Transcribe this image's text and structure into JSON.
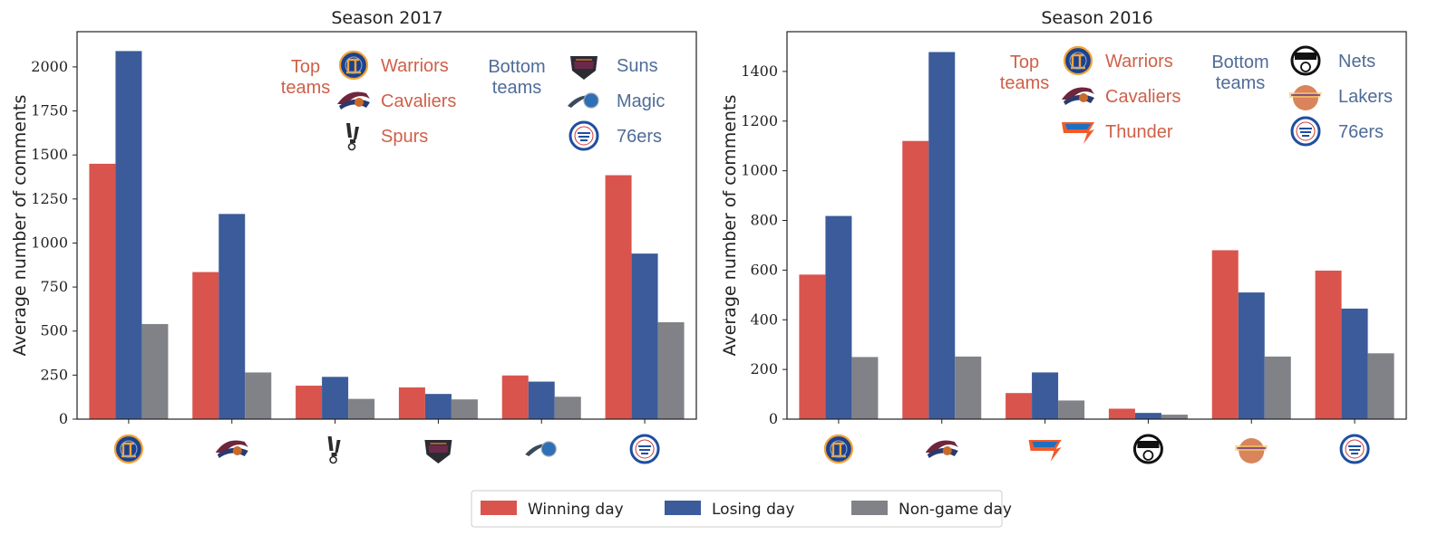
{
  "colors": {
    "winning": "#d9544d",
    "losing": "#3b5b9a",
    "nongame": "#808287",
    "top_text": "#cf6048",
    "bottom_text": "#4f6c97"
  },
  "legend": {
    "placement": "bottom-center",
    "entries": [
      "Winning day",
      "Losing day",
      "Non-game day"
    ]
  },
  "chart_data": [
    {
      "type": "bar",
      "title": "Season 2017",
      "ylabel": "Average number of comments",
      "xlabel": "",
      "ylim": [
        0,
        2200
      ],
      "yticks": [
        0,
        250,
        500,
        750,
        1000,
        1250,
        1500,
        1750,
        2000
      ],
      "grid": false,
      "categories": [
        "Warriors",
        "Cavaliers",
        "Spurs",
        "Suns",
        "Magic",
        "76ers"
      ],
      "category_icons": [
        "warriors-logo-icon",
        "cavaliers-logo-icon",
        "spurs-logo-icon",
        "suns-logo-icon",
        "magic-logo-icon",
        "76ers-logo-icon"
      ],
      "series": [
        {
          "name": "Winning day",
          "values": [
            1450,
            835,
            190,
            180,
            248,
            1385
          ]
        },
        {
          "name": "Losing day",
          "values": [
            2090,
            1165,
            240,
            143,
            213,
            940
          ]
        },
        {
          "name": "Non-game day",
          "values": [
            540,
            265,
            115,
            112,
            127,
            550
          ]
        }
      ],
      "annotation": {
        "top_label": [
          "Top",
          "teams"
        ],
        "top_teams": [
          {
            "name": "Warriors",
            "icon": "warriors-logo-icon"
          },
          {
            "name": "Cavaliers",
            "icon": "cavaliers-logo-icon"
          },
          {
            "name": "Spurs",
            "icon": "spurs-logo-icon"
          }
        ],
        "bottom_label": [
          "Bottom",
          "teams"
        ],
        "bottom_teams": [
          {
            "name": "Suns",
            "icon": "suns-logo-icon"
          },
          {
            "name": "Magic",
            "icon": "magic-logo-icon"
          },
          {
            "name": "76ers",
            "icon": "76ers-logo-icon"
          }
        ]
      }
    },
    {
      "type": "bar",
      "title": "Season 2016",
      "ylabel": "Average number of comments",
      "xlabel": "",
      "ylim": [
        0,
        1560
      ],
      "yticks": [
        0,
        200,
        400,
        600,
        800,
        1000,
        1200,
        1400
      ],
      "grid": false,
      "categories": [
        "Warriors",
        "Cavaliers",
        "Thunder",
        "Nets",
        "Lakers",
        "76ers"
      ],
      "category_icons": [
        "warriors-logo-icon",
        "cavaliers-logo-icon",
        "thunder-logo-icon",
        "nets-logo-icon",
        "lakers-logo-icon",
        "76ers-logo-icon"
      ],
      "series": [
        {
          "name": "Winning day",
          "values": [
            582,
            1120,
            105,
            42,
            680,
            598
          ]
        },
        {
          "name": "Losing day",
          "values": [
            818,
            1478,
            188,
            25,
            510,
            445
          ]
        },
        {
          "name": "Non-game day",
          "values": [
            250,
            252,
            75,
            18,
            252,
            265
          ]
        }
      ],
      "annotation": {
        "top_label": [
          "Top",
          "teams"
        ],
        "top_teams": [
          {
            "name": "Warriors",
            "icon": "warriors-logo-icon"
          },
          {
            "name": "Cavaliers",
            "icon": "cavaliers-logo-icon"
          },
          {
            "name": "Thunder",
            "icon": "thunder-logo-icon"
          }
        ],
        "bottom_label": [
          "Bottom",
          "teams"
        ],
        "bottom_teams": [
          {
            "name": "Nets",
            "icon": "nets-logo-icon"
          },
          {
            "name": "Lakers",
            "icon": "lakers-logo-icon"
          },
          {
            "name": "76ers",
            "icon": "76ers-logo-icon"
          }
        ]
      }
    }
  ]
}
